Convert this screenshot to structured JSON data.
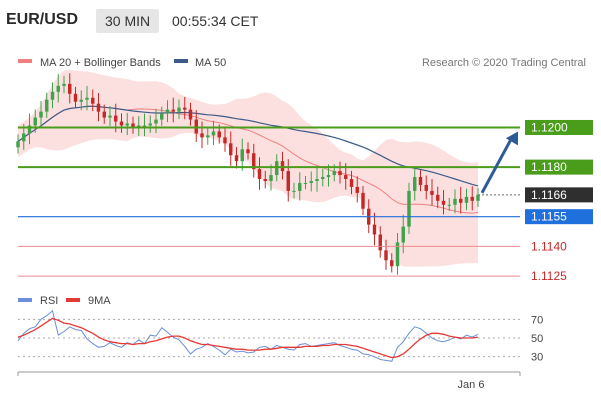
{
  "header": {
    "symbol": "EUR/USD",
    "timeframe": "30 MIN",
    "time": "00:55:34 CET"
  },
  "legend": {
    "ma20_label": "MA 20 + Bollinger Bands",
    "ma50_label": "MA 50",
    "credit": "Research © 2020 Trading Central",
    "rsi_label": "RSI",
    "ma9_label": "9MA"
  },
  "colors": {
    "bull": "#3fa34d",
    "bear": "#c62828",
    "ma20": "#f08080",
    "bb_fill": "#fbd4d4",
    "ma50": "#3d5a8a",
    "green_level": "#4a9d1a",
    "blue_level": "#1f6fdc",
    "red_level": "#f08c8c",
    "current": "#2f2f2f",
    "arrow": "#2d5b96",
    "rsi": "#6b8fd8",
    "rsi_ma": "#e53935"
  },
  "chart_data": [
    {
      "type": "candlestick",
      "title": "EUR/USD 30 MIN",
      "ylim": [
        1.1118,
        1.1229
      ],
      "levels": [
        {
          "value": 1.12,
          "label": "1.1200",
          "style": "resistance"
        },
        {
          "value": 1.118,
          "label": "1.1180",
          "style": "resistance"
        },
        {
          "value": 1.1166,
          "label": "1.1166",
          "style": "current"
        },
        {
          "value": 1.1155,
          "label": "1.1155",
          "style": "pivot"
        },
        {
          "value": 1.114,
          "label": "1.1140",
          "style": "support"
        },
        {
          "value": 1.1125,
          "label": "1.1125",
          "style": "support"
        }
      ],
      "projection": {
        "from": 1.1166,
        "to": 1.12,
        "direction": "up"
      },
      "x_labels": [
        "Jan 6"
      ],
      "close": [
        1.1193,
        1.1197,
        1.1201,
        1.1205,
        1.1208,
        1.1214,
        1.1218,
        1.1221,
        1.1222,
        1.1217,
        1.1213,
        1.1214,
        1.1215,
        1.1212,
        1.1208,
        1.1205,
        1.1206,
        1.1203,
        1.1201,
        1.1202,
        1.12,
        1.1201,
        1.1201,
        1.1202,
        1.1204,
        1.1207,
        1.1209,
        1.1208,
        1.121,
        1.1209,
        1.1204,
        1.1197,
        1.1195,
        1.1196,
        1.1198,
        1.1195,
        1.1192,
        1.1186,
        1.1183,
        1.1189,
        1.1187,
        1.1179,
        1.1174,
        1.1173,
        1.1176,
        1.1183,
        1.1178,
        1.1168,
        1.1168,
        1.1172,
        1.1172,
        1.1173,
        1.1174,
        1.1175,
        1.1176,
        1.1178,
        1.1176,
        1.1174,
        1.117,
        1.1167,
        1.1159,
        1.1151,
        1.1146,
        1.1138,
        1.1133,
        1.113,
        1.1142,
        1.115,
        1.1168,
        1.1175,
        1.1171,
        1.1168,
        1.1166,
        1.1163,
        1.1161,
        1.1161,
        1.1164,
        1.1162,
        1.1165,
        1.1163,
        1.1166
      ]
    },
    {
      "type": "line",
      "title": "RSI",
      "yticks": [
        70,
        50,
        30
      ],
      "ylim": [
        20,
        80
      ],
      "series": [
        {
          "name": "RSI",
          "values": [
            47,
            55,
            60,
            62,
            70,
            74,
            79,
            53,
            57,
            62,
            59,
            58,
            49,
            44,
            40,
            41,
            45,
            42,
            40,
            45,
            43,
            48,
            44,
            53,
            52,
            61,
            56,
            51,
            48,
            41,
            33,
            38,
            40,
            44,
            41,
            37,
            32,
            38,
            35,
            36,
            34,
            35,
            40,
            41,
            38,
            42,
            40,
            38,
            37,
            43,
            44,
            41,
            42,
            43,
            44,
            45,
            42,
            40,
            38,
            37,
            33,
            32,
            30,
            27,
            26,
            25,
            40,
            46,
            55,
            62,
            60,
            55,
            50,
            47,
            46,
            48,
            51,
            49,
            53,
            51,
            54
          ]
        },
        {
          "name": "9MA",
          "values": [
            51,
            53,
            56,
            59,
            63,
            67,
            71,
            69,
            66,
            65,
            63,
            61,
            58,
            55,
            51,
            48,
            46,
            45,
            44,
            44,
            43,
            44,
            44,
            46,
            47,
            49,
            51,
            52,
            52,
            50,
            47,
            45,
            43,
            43,
            42,
            41,
            40,
            39,
            38,
            38,
            37,
            37,
            37,
            38,
            38,
            39,
            40,
            40,
            40,
            40,
            41,
            41,
            41,
            42,
            42,
            43,
            43,
            43,
            42,
            41,
            39,
            37,
            35,
            33,
            31,
            29,
            30,
            33,
            38,
            44,
            49,
            53,
            55,
            55,
            54,
            52,
            51,
            50,
            50,
            50,
            51
          ]
        }
      ]
    }
  ]
}
